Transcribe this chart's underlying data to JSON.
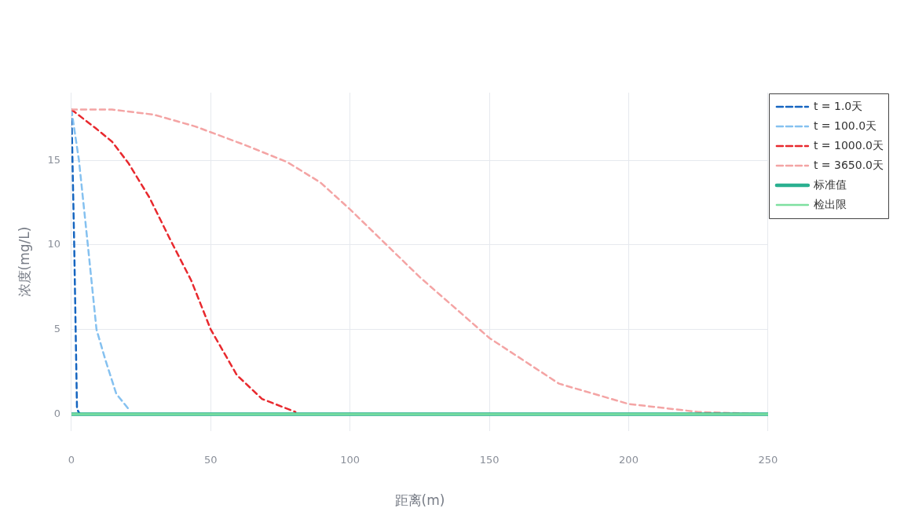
{
  "chart_data": {
    "type": "line",
    "xlabel": "距离(m)",
    "ylabel": "浓度(mg/L)",
    "xlim": [
      0,
      250
    ],
    "xticks": [
      0,
      50,
      100,
      150,
      200,
      250
    ],
    "ylim": [
      -1,
      19
    ],
    "yticks": [
      0,
      5,
      10,
      15
    ],
    "grid": true,
    "legend": "top right",
    "marker": "none",
    "series": [
      {
        "name": "t = 1.0天",
        "color": "#1565c0",
        "line_style": "dashed",
        "x": [
          0,
          1,
          2,
          3
        ],
        "values": [
          18,
          10,
          0.3,
          0
        ]
      },
      {
        "name": "t = 100.0天",
        "color": "#85c1f0",
        "line_style": "dashed",
        "x": [
          0,
          2.7,
          5.7,
          9,
          12.2,
          16.1,
          20.3
        ],
        "values": [
          18,
          15,
          10.3,
          5,
          3.2,
          1.2,
          0.35
        ]
      },
      {
        "name": "t = 1000.0天",
        "color": "#e8292e",
        "line_style": "dashed",
        "x": [
          0,
          8.7,
          14.6,
          20.6,
          28,
          35.5,
          43,
          50,
          59.4,
          68.4,
          80.4
        ],
        "values": [
          18,
          16.9,
          16.1,
          14.8,
          12.8,
          10.3,
          7.9,
          5,
          2.3,
          0.9,
          0.13
        ]
      },
      {
        "name": "t = 3650.0天",
        "color": "#f4a4a4",
        "line_style": "dashed",
        "x": [
          0,
          14.6,
          29.6,
          44.5,
          62.4,
          77.4,
          89.3,
          100,
          125,
          150,
          175,
          200,
          225,
          250
        ],
        "values": [
          18,
          18,
          17.7,
          17,
          15.9,
          14.9,
          13.7,
          12.1,
          8.1,
          4.5,
          1.8,
          0.6,
          0.13,
          0
        ]
      },
      {
        "name": "标准值",
        "color": "#2ab090",
        "line_style": "solid",
        "x": [
          0,
          250
        ],
        "values": [
          0,
          0
        ]
      },
      {
        "name": "检出限",
        "color": "#7ee0a0",
        "line_style": "solid",
        "x": [
          0,
          250
        ],
        "values": [
          0,
          0
        ]
      }
    ]
  }
}
